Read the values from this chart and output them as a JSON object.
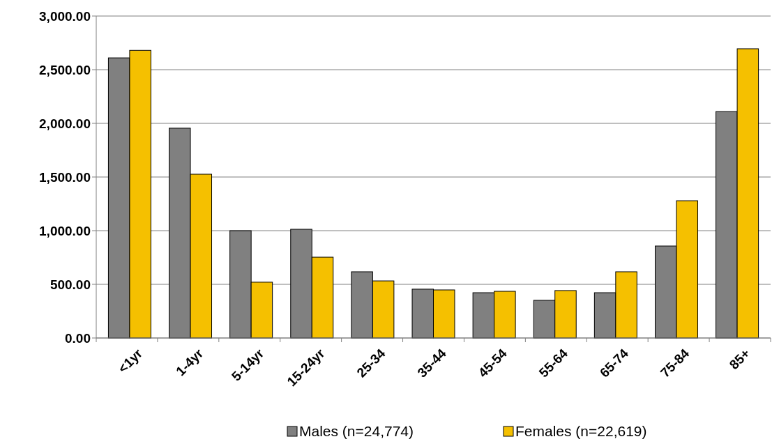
{
  "chart_data": {
    "type": "bar",
    "categories": [
      "<1yr",
      "1-4yr",
      "5-14yr",
      "15-24yr",
      "25-34",
      "35-44",
      "45-54",
      "55-64",
      "65-74",
      "75-84",
      "85+"
    ],
    "series": [
      {
        "name": "Males (n=24,774)",
        "color": "#808080",
        "values": [
          2610,
          1955,
          1000,
          1013,
          617,
          455,
          422,
          351,
          422,
          857,
          2110
        ]
      },
      {
        "name": "Females (n=22,619)",
        "color": "#f5c000",
        "values": [
          2680,
          1526,
          520,
          753,
          532,
          448,
          435,
          442,
          617,
          1279,
          2695
        ]
      }
    ],
    "ylim": [
      0,
      3000
    ],
    "yticks": [
      {
        "value": 0,
        "label": "0.00"
      },
      {
        "value": 500,
        "label": "500.00"
      },
      {
        "value": 1000,
        "label": "1,000.00"
      },
      {
        "value": 1500,
        "label": "1,500.00"
      },
      {
        "value": 2000,
        "label": "2,000.00"
      },
      {
        "value": 2500,
        "label": "2,500.00"
      },
      {
        "value": 3000,
        "label": "3,000.00"
      }
    ],
    "grid": "y",
    "legend": "bottom"
  }
}
